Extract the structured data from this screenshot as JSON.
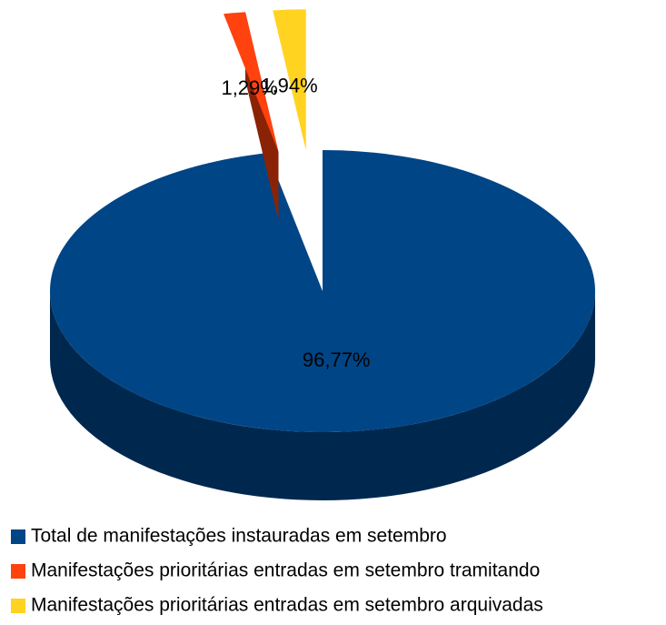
{
  "chart_data": {
    "type": "pie",
    "categories": [
      "Total de manifestações instauradas em setembro",
      "Manifestações prioritárias entradas em setembro tramitando",
      "Manifestações prioritárias entradas em setembro arquivadas"
    ],
    "values": [
      96.77,
      1.29,
      1.94
    ],
    "value_labels": [
      "96,77%",
      "1,29%",
      "1,94%"
    ],
    "colors": [
      "#004586",
      "#ff420e",
      "#ffd320"
    ],
    "side_colors": [
      "#00284f",
      "#8a2306",
      "#8a7212"
    ],
    "exploded": [
      false,
      true,
      true
    ]
  }
}
